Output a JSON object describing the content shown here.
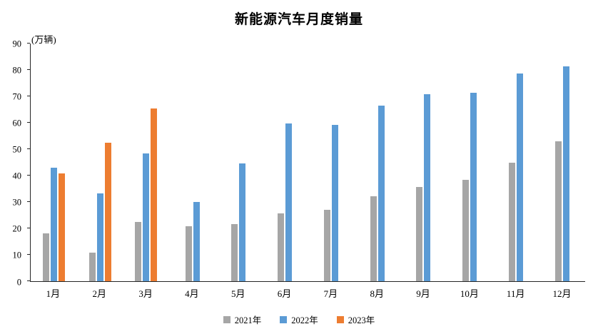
{
  "title": "新能源汽车月度销量",
  "y_axis_unit": "(万辆)",
  "chart_data": {
    "type": "bar",
    "title": "新能源汽车月度销量",
    "xlabel": "",
    "ylabel": "(万辆)",
    "ylim": [
      0,
      90
    ],
    "ytick_step": 10,
    "grid": false,
    "legend_position": "bottom",
    "categories": [
      "1月",
      "2月",
      "3月",
      "4月",
      "5月",
      "6月",
      "7月",
      "8月",
      "9月",
      "10月",
      "11月",
      "12月"
    ],
    "series": [
      {
        "name": "2021年",
        "color": "#a6a6a6",
        "values": [
          18,
          10.9,
          22.5,
          20.8,
          21.7,
          25.7,
          27.1,
          32.1,
          35.7,
          38.3,
          45,
          53.1
        ]
      },
      {
        "name": "2022年",
        "color": "#5b9bd5",
        "values": [
          43.1,
          33.3,
          48.4,
          29.9,
          44.7,
          59.6,
          59.3,
          66.6,
          70.8,
          71.4,
          78.6,
          81.4
        ]
      },
      {
        "name": "2023年",
        "color": "#ed7d31",
        "values": [
          40.8,
          52.5,
          65.3,
          null,
          null,
          null,
          null,
          null,
          null,
          null,
          null,
          null
        ]
      }
    ]
  }
}
